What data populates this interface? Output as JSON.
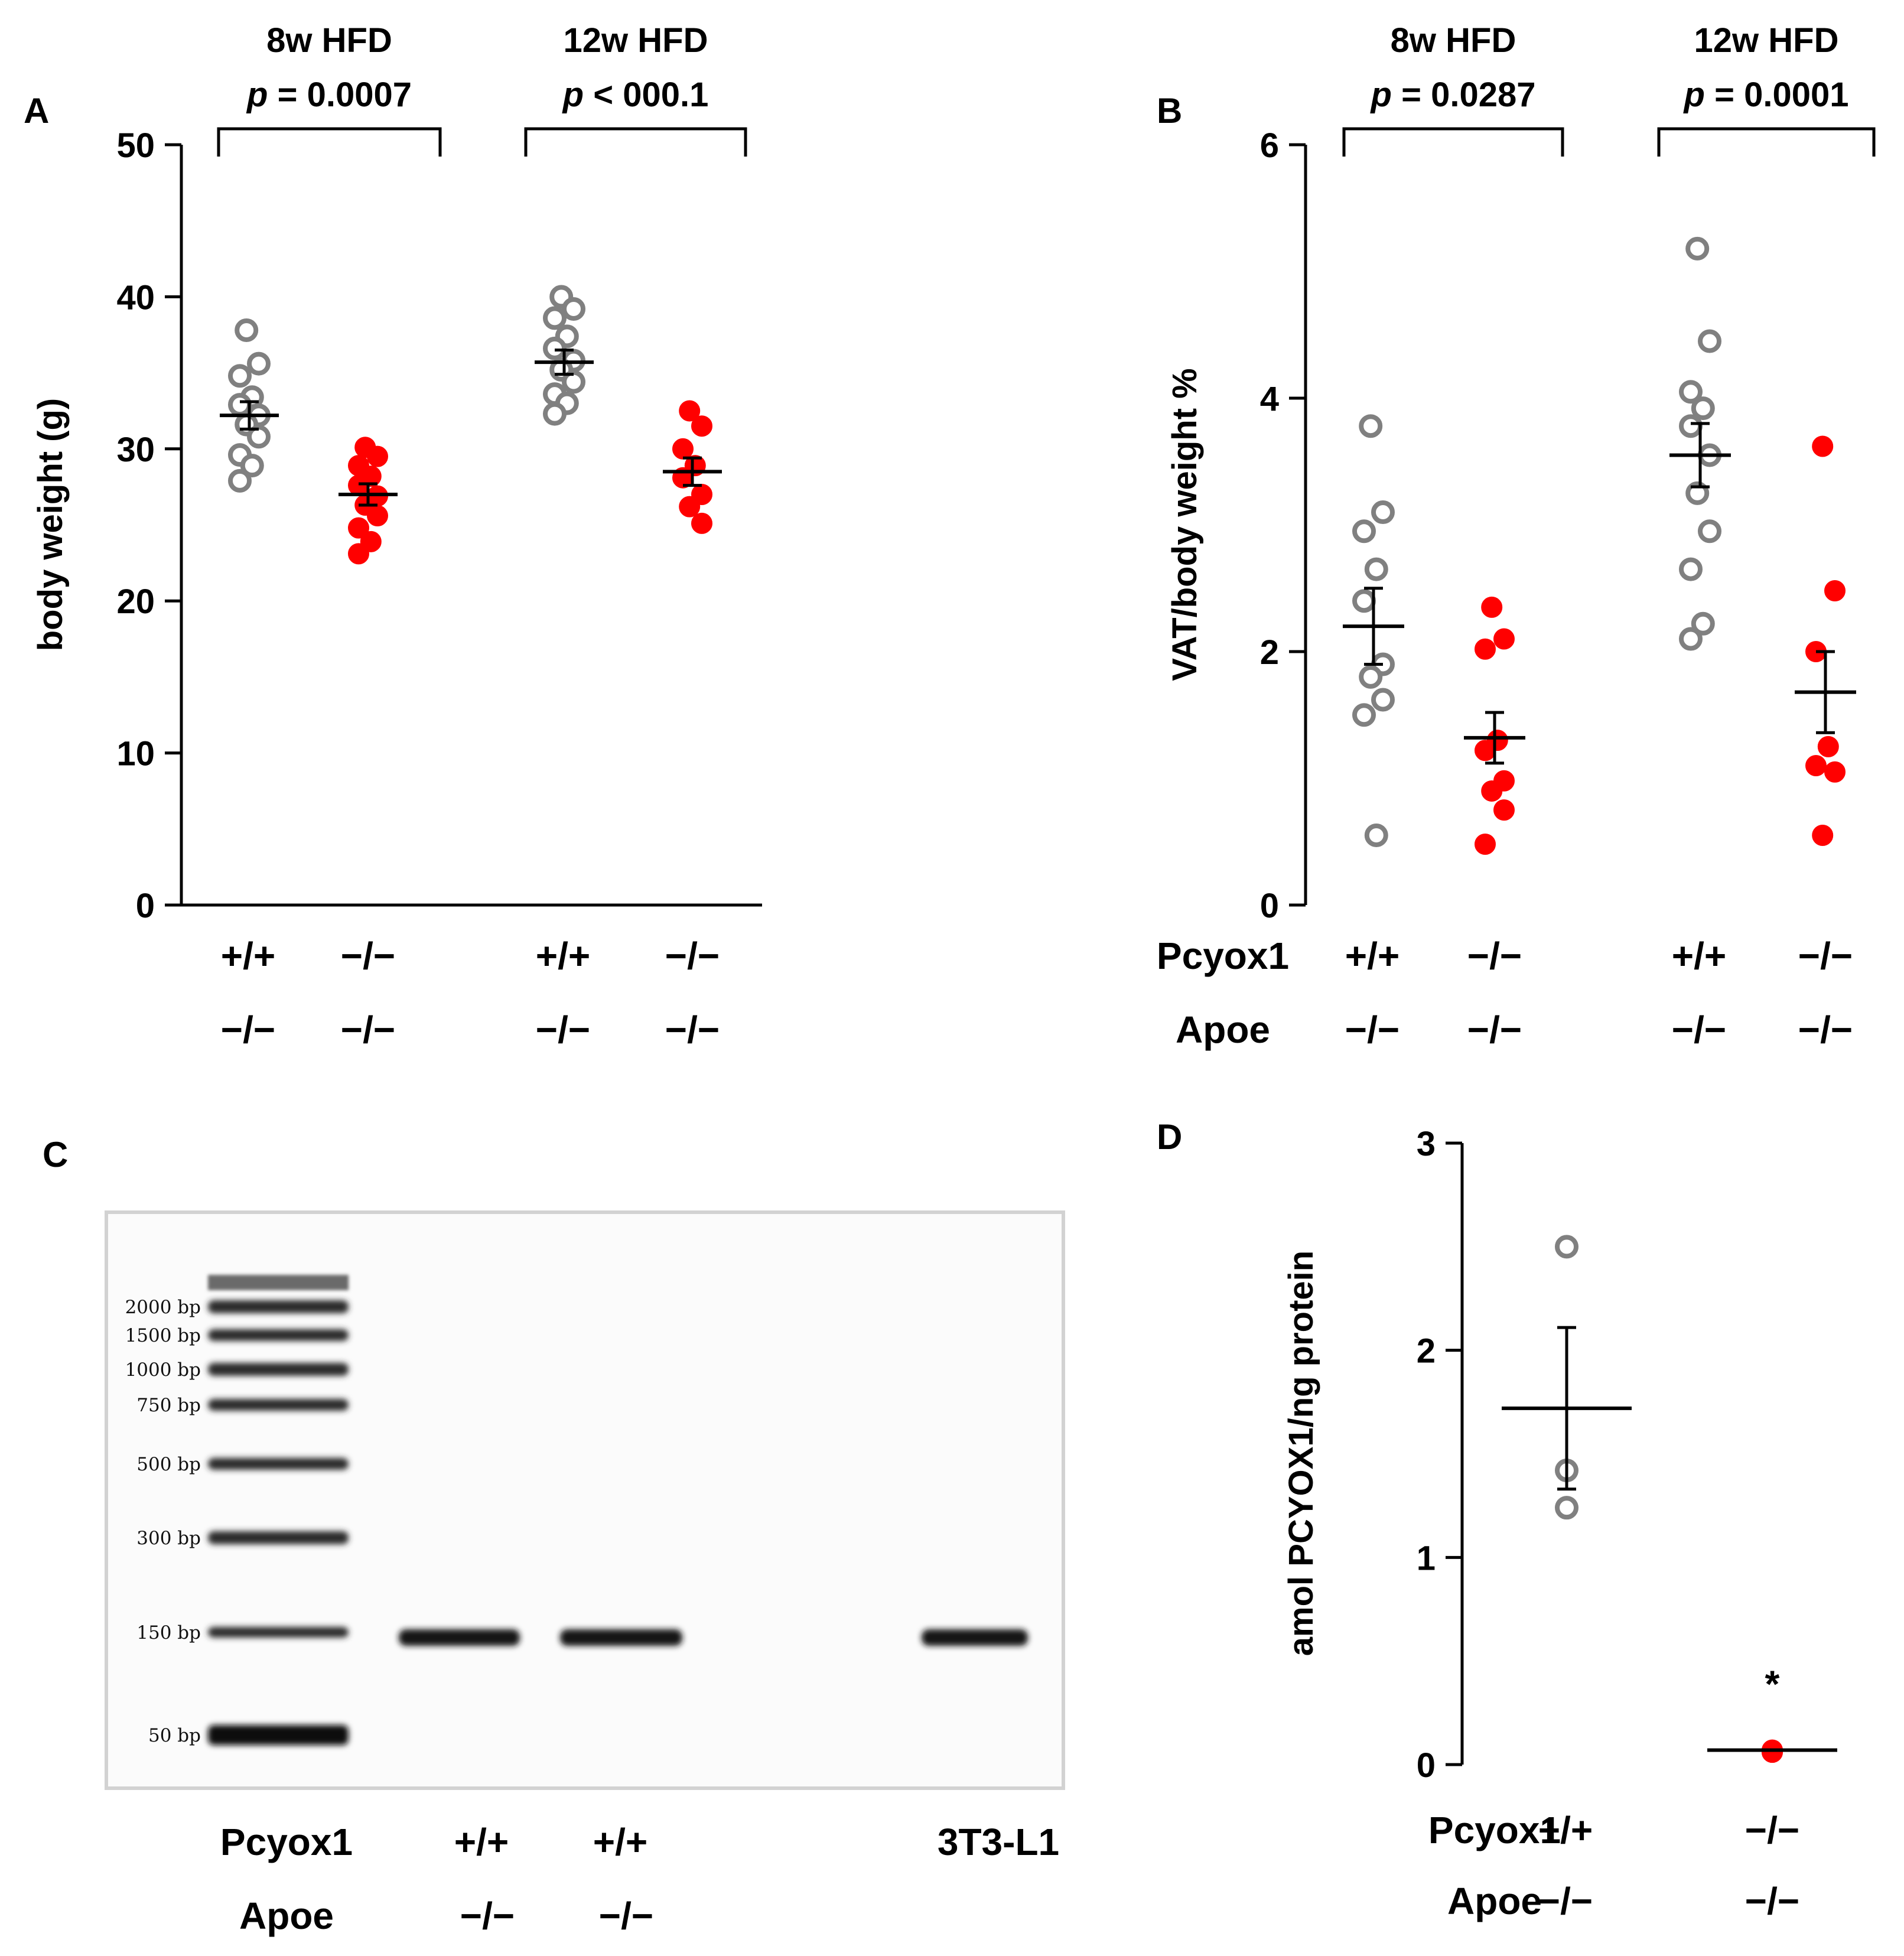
{
  "chart_data": [
    {
      "panel": "A",
      "type": "scatter",
      "ylabel": "body weight (g)",
      "ylim": [
        0,
        50
      ],
      "yticks": [
        "0",
        "10",
        "20",
        "30",
        "40",
        "50"
      ],
      "brackets": [
        {
          "title": "8w HFD",
          "p_label": "p",
          "p_value": "= 0.0007"
        },
        {
          "title": "12w HFD",
          "p_label": "p",
          "p_value": "< 000.1"
        }
      ],
      "xlabels": [
        {
          "top": "+/+",
          "bottom": "−/−"
        },
        {
          "top": "−/−",
          "bottom": "−/−"
        },
        {
          "top": "+/+",
          "bottom": "−/−"
        },
        {
          "top": "−/−",
          "bottom": "−/−"
        }
      ],
      "series": [
        {
          "name": "8w HFD Pcyox1 +/+",
          "color": "#808080",
          "filled": false,
          "values": [
            37.8,
            35.6,
            34.8,
            33.4,
            32.9,
            32.2,
            31.6,
            30.8,
            29.6,
            28.9,
            27.9
          ],
          "mean": 32.2,
          "sem": 0.9
        },
        {
          "name": "8w HFD Pcyox1 −/−",
          "color": "#ff0000",
          "filled": true,
          "values": [
            30.1,
            29.5,
            28.9,
            28.2,
            27.6,
            26.9,
            26.3,
            25.6,
            24.8,
            23.9,
            23.1
          ],
          "mean": 27.0,
          "sem": 0.7
        },
        {
          "name": "12w HFD Pcyox1 +/+",
          "color": "#808080",
          "filled": false,
          "values": [
            40.0,
            39.2,
            38.6,
            37.4,
            36.6,
            35.8,
            35.2,
            34.4,
            33.6,
            33.0,
            32.3
          ],
          "mean": 35.7,
          "sem": 0.8
        },
        {
          "name": "12w HFD Pcyox1 −/−",
          "color": "#ff0000",
          "filled": true,
          "values": [
            32.5,
            31.5,
            30.0,
            28.9,
            28.1,
            27.0,
            26.2,
            25.1
          ],
          "mean": 28.5,
          "sem": 0.9
        }
      ]
    },
    {
      "panel": "B",
      "type": "scatter",
      "ylabel": "VAT/body weight %",
      "ylim": [
        0,
        6
      ],
      "yticks": [
        "0",
        "2",
        "4",
        "6"
      ],
      "brackets": [
        {
          "title": "8w HFD",
          "p_label": "p",
          "p_value": "= 0.0287"
        },
        {
          "title": "12w HFD",
          "p_label": "p",
          "p_value": "= 0.0001"
        }
      ],
      "row_labels": [
        "Pcyox1",
        "Apoe"
      ],
      "xlabels": [
        {
          "top": "+/+",
          "bottom": "−/−"
        },
        {
          "top": "−/−",
          "bottom": "−/−"
        },
        {
          "top": "+/+",
          "bottom": "−/−"
        },
        {
          "top": "−/−",
          "bottom": "−/−"
        }
      ],
      "series": [
        {
          "name": "8w HFD Pcyox1 +/+",
          "color": "#808080",
          "filled": false,
          "values": [
            3.78,
            3.1,
            2.95,
            2.65,
            2.4,
            1.9,
            1.8,
            1.62,
            1.5,
            0.55
          ],
          "mean": 2.2,
          "sem": 0.3
        },
        {
          "name": "8w HFD Pcyox1 −/−",
          "color": "#ff0000",
          "filled": true,
          "values": [
            2.35,
            2.1,
            2.02,
            1.3,
            1.22,
            0.98,
            0.9,
            0.75,
            0.48
          ],
          "mean": 1.32,
          "sem": 0.2
        },
        {
          "name": "12w HFD Pcyox1 +/+",
          "color": "#808080",
          "filled": false,
          "values": [
            5.18,
            4.45,
            4.05,
            3.92,
            3.78,
            3.55,
            3.25,
            2.95,
            2.65,
            2.22,
            2.1
          ],
          "mean": 3.55,
          "sem": 0.25
        },
        {
          "name": "12w HFD Pcyox1 −/−",
          "color": "#ff0000",
          "filled": true,
          "values": [
            3.62,
            2.48,
            2.0,
            1.25,
            1.1,
            1.05,
            0.55
          ],
          "mean": 1.68,
          "sem": 0.32
        }
      ]
    },
    {
      "panel": "D",
      "type": "scatter",
      "ylabel": "amol PCYOX1/ng protein",
      "ylim": [
        0,
        3
      ],
      "yticks": [
        "0",
        "1",
        "2",
        "3"
      ],
      "row_labels": [
        "Pcyox1",
        "Apoe"
      ],
      "annotation": "*",
      "xlabels": [
        {
          "top": "+/+",
          "bottom": "−/−"
        },
        {
          "top": "−/−",
          "bottom": "−/−"
        }
      ],
      "series": [
        {
          "name": "Pcyox1 +/+",
          "color": "#808080",
          "filled": false,
          "values": [
            2.5,
            1.42,
            1.24
          ],
          "mean": 1.72,
          "sem": 0.39
        },
        {
          "name": "Pcyox1 −/−",
          "color": "#ff0000",
          "filled": true,
          "values": [
            0.07,
            0.06,
            0.06
          ],
          "mean": 0.07,
          "sem": 0.0
        }
      ]
    }
  ],
  "gel": {
    "panel": "C",
    "ladder": [
      "2000 bp",
      "1500 bp",
      "1000 bp",
      "750 bp",
      "500 bp",
      "300 bp",
      "150 bp",
      "50 bp"
    ],
    "row_labels": [
      "Pcyox1",
      "Apoe"
    ],
    "lanes": [
      {
        "top": "+/+",
        "bottom": "−/−"
      },
      {
        "top": "+/+",
        "bottom": "−/−"
      },
      {
        "top": "3T3-L1",
        "bottom": ""
      }
    ]
  }
}
